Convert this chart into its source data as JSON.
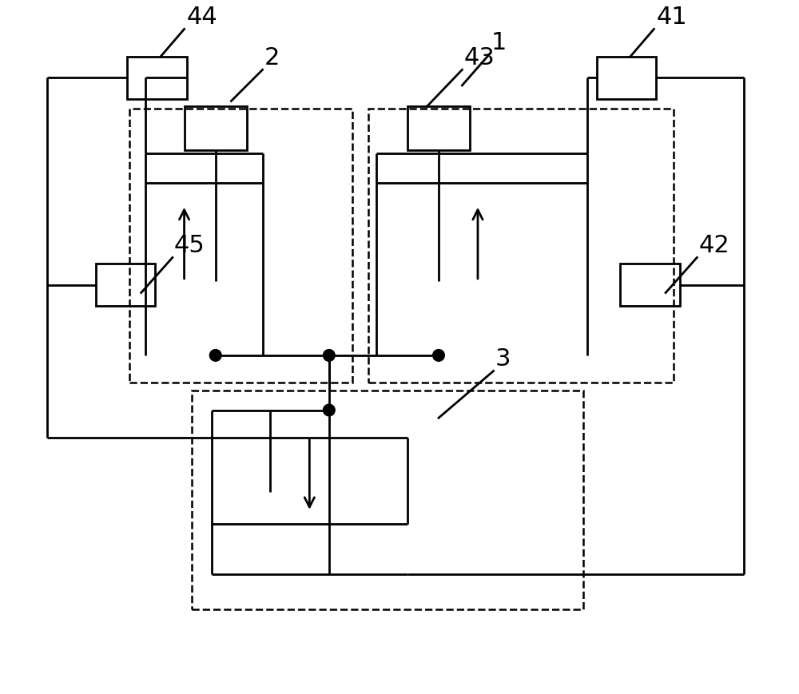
{
  "fig_width": 10.0,
  "fig_height": 8.7,
  "bg_color": "#ffffff",
  "label_fontsize": 22,
  "lw": 2.0,
  "lw_dash": 1.8,
  "dot_r": 0.075
}
